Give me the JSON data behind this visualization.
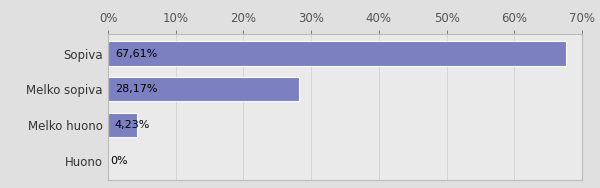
{
  "categories": [
    "Huono",
    "Melko huono",
    "Melko sopiva",
    "Sopiva"
  ],
  "values": [
    0.0,
    4.23,
    28.17,
    67.61
  ],
  "labels": [
    "0%",
    "4,23%",
    "28,17%",
    "67,61%"
  ],
  "bar_color": "#7b80c0",
  "background_color": "#e0e0e0",
  "plot_bg_color": "#eaeaea",
  "xlim": [
    0,
    70
  ],
  "xticks": [
    0,
    10,
    20,
    30,
    40,
    50,
    60,
    70
  ],
  "xtick_labels": [
    "0%",
    "10%",
    "20%",
    "30%",
    "40%",
    "50%",
    "60%",
    "70%"
  ],
  "ylabel_fontsize": 8.5,
  "xlabel_fontsize": 8.5,
  "label_fontsize": 8
}
